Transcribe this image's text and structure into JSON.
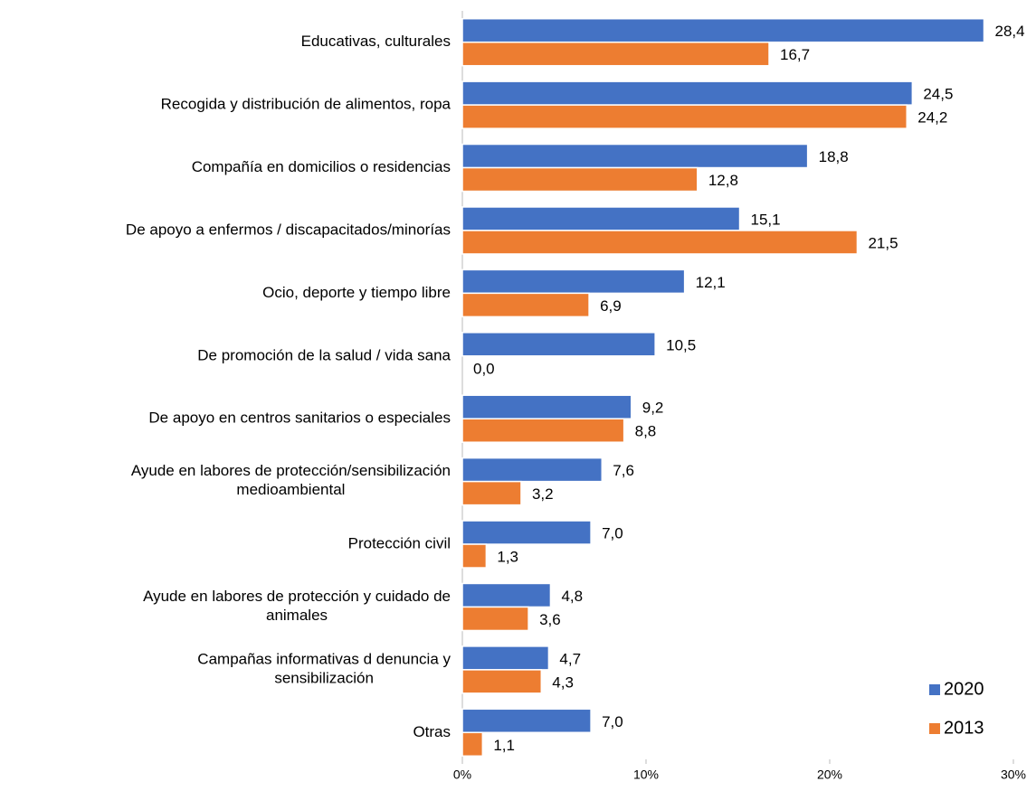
{
  "chart_data": {
    "type": "barh",
    "categories": [
      "Educativas, culturales",
      "Recogida y distribución de alimentos, ropa",
      "Compañía en domicilios o residencias",
      "De apoyo a enfermos / discapacitados/minorías",
      "Ocio, deporte y tiempo libre",
      "De promoción de la salud / vida sana",
      "De apoyo en centros sanitarios o especiales",
      "Ayude en labores de protección/sensibilización\nmedioambiental",
      "Protección civil",
      "Ayude en labores de protección y cuidado de\nanimales",
      "Campañas informativas d denuncia y\nsensibilización",
      "Otras"
    ],
    "series": [
      {
        "name": "2020",
        "color": "#4472c4",
        "values": [
          28.4,
          24.5,
          18.8,
          15.1,
          12.1,
          10.5,
          9.2,
          7.6,
          7.0,
          4.8,
          4.7,
          7.0
        ],
        "value_labels": [
          "28,4",
          "24,5",
          "18,8",
          "15,1",
          "12,1",
          "10,5",
          "9,2",
          "7,6",
          "7,0",
          "4,8",
          "4,7",
          "7,0"
        ]
      },
      {
        "name": "2013",
        "color": "#ed7d31",
        "values": [
          16.7,
          24.2,
          12.8,
          21.5,
          6.9,
          0.0,
          8.8,
          3.2,
          1.3,
          3.6,
          4.3,
          1.1
        ],
        "value_labels": [
          "16,7",
          "24,2",
          "12,8",
          "21,5",
          "6,9",
          "0,0",
          "8,8",
          "3,2",
          "1,3",
          "3,6",
          "4,3",
          "1,1"
        ]
      }
    ],
    "xlim": [
      0,
      30
    ],
    "xticks": [
      {
        "value": 0,
        "label": "0%"
      },
      {
        "value": 10,
        "label": "10%"
      },
      {
        "value": 20,
        "label": "20%"
      },
      {
        "value": 30,
        "label": "30%"
      }
    ],
    "legend": "lower right"
  }
}
